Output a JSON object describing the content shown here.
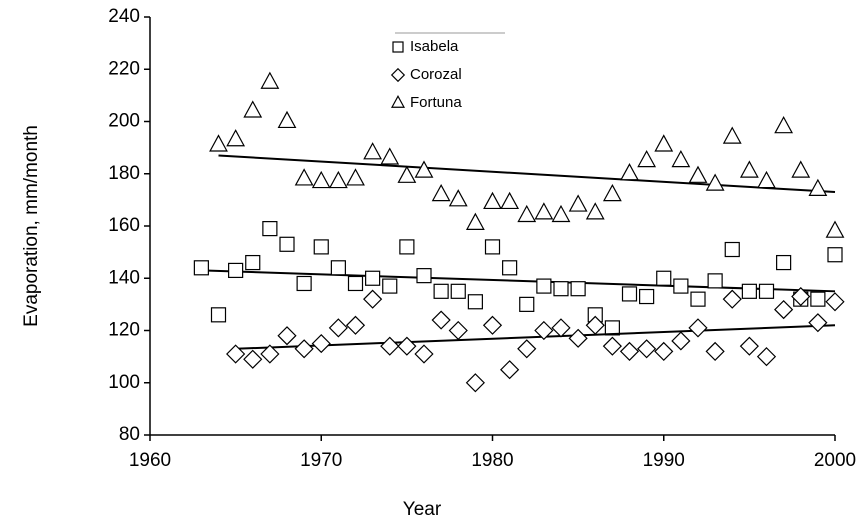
{
  "chart_data": {
    "type": "scatter",
    "x_label": "Year",
    "y_label": "Evaporation, mm/month",
    "xlim": [
      1960,
      2000
    ],
    "xticks": [
      1960,
      1970,
      1980,
      1990,
      2000
    ],
    "ylim": [
      80,
      240
    ],
    "yticks": [
      80,
      100,
      120,
      140,
      160,
      180,
      200,
      220,
      240
    ],
    "grid": false,
    "legend": "top",
    "series": [
      {
        "name": "Isabela",
        "color": "#000000",
        "marker": "square",
        "x": [
          1963,
          1964,
          1965,
          1966,
          1967,
          1968,
          1969,
          1970,
          1971,
          1972,
          1973,
          1974,
          1975,
          1976,
          1977,
          1978,
          1979,
          1980,
          1981,
          1982,
          1983,
          1984,
          1985,
          1986,
          1987,
          1988,
          1989,
          1990,
          1991,
          1992,
          1993,
          1994,
          1995,
          1996,
          1997,
          1998,
          1999,
          2000
        ],
        "values": [
          144,
          126,
          143,
          146,
          159,
          153,
          138,
          152,
          144,
          138,
          140,
          137,
          152,
          141,
          135,
          135,
          131,
          152,
          144,
          130,
          137,
          136,
          136,
          126,
          121,
          134,
          133,
          140,
          137,
          132,
          139,
          151,
          135,
          135,
          146,
          132,
          132,
          149
        ],
        "trend": {
          "x": [
            1963,
            2000
          ],
          "values": [
            143,
            135
          ]
        }
      },
      {
        "name": "Corozal",
        "color": "#000000",
        "marker": "diamond",
        "x": [
          1965,
          1966,
          1967,
          1968,
          1969,
          1970,
          1971,
          1972,
          1973,
          1974,
          1975,
          1976,
          1977,
          1978,
          1979,
          1980,
          1981,
          1982,
          1983,
          1984,
          1985,
          1986,
          1987,
          1988,
          1989,
          1990,
          1991,
          1992,
          1993,
          1994,
          1995,
          1996,
          1997,
          1998,
          1999,
          2000
        ],
        "values": [
          111,
          109,
          111,
          118,
          113,
          115,
          121,
          122,
          132,
          114,
          114,
          111,
          124,
          120,
          100,
          122,
          105,
          113,
          120,
          121,
          117,
          122,
          114,
          112,
          113,
          112,
          116,
          121,
          112,
          132,
          114,
          110,
          128,
          133,
          123,
          131
        ],
        "trend": {
          "x": [
            1965,
            2000
          ],
          "values": [
            113,
            122
          ]
        }
      },
      {
        "name": "Fortuna",
        "color": "#000000",
        "marker": "triangle",
        "x": [
          1964,
          1965,
          1966,
          1967,
          1968,
          1969,
          1970,
          1971,
          1972,
          1973,
          1974,
          1975,
          1976,
          1977,
          1978,
          1979,
          1980,
          1981,
          1982,
          1983,
          1984,
          1985,
          1986,
          1987,
          1988,
          1989,
          1990,
          1991,
          1992,
          1993,
          1994,
          1995,
          1996,
          1997,
          1998,
          1999,
          2000
        ],
        "values": [
          191,
          193,
          204,
          215,
          200,
          178,
          177,
          177,
          178,
          188,
          186,
          179,
          181,
          172,
          170,
          161,
          169,
          169,
          164,
          165,
          164,
          168,
          165,
          172,
          180,
          185,
          191,
          185,
          179,
          176,
          194,
          181,
          177,
          198,
          181,
          174,
          158
        ],
        "trend": {
          "x": [
            1964,
            2000
          ],
          "values": [
            187,
            173
          ]
        }
      }
    ]
  }
}
